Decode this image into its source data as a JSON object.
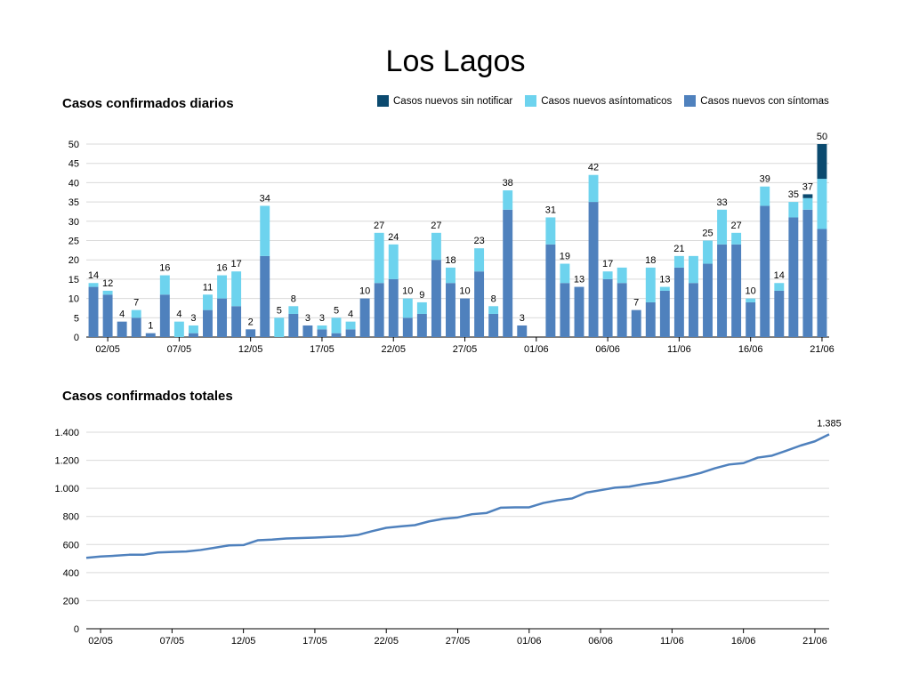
{
  "page": {
    "title": "Los Lagos"
  },
  "colors": {
    "sin_notificar": "#0b4a6f",
    "asintomaticos": "#6dd3ee",
    "sintomas": "#4f81bd",
    "grid": "#d9d9d9",
    "axis": "#000000"
  },
  "legend": [
    {
      "label": "Casos nuevos sin notificar",
      "color_key": "sin_notificar"
    },
    {
      "label": "Casos nuevos asíntomaticos",
      "color_key": "asintomaticos"
    },
    {
      "label": "Casos nuevos con síntomas",
      "color_key": "sintomas"
    }
  ],
  "chart_data": [
    {
      "type": "bar",
      "title": "Casos confirmados diarios",
      "stacked": true,
      "ylim": [
        0,
        50
      ],
      "yticks": [
        0,
        5,
        10,
        15,
        20,
        25,
        30,
        35,
        40,
        45,
        50
      ],
      "x_tick_labels": [
        "02/05",
        "07/05",
        "12/05",
        "17/05",
        "22/05",
        "27/05",
        "01/06",
        "06/06",
        "11/06",
        "16/06",
        "21/06"
      ],
      "x_tick_indices": [
        1,
        6,
        11,
        16,
        21,
        26,
        31,
        36,
        41,
        46,
        51
      ],
      "series": [
        {
          "name": "Casos nuevos con síntomas",
          "color_key": "sintomas",
          "values": [
            13,
            11,
            4,
            5,
            1,
            11,
            0,
            1,
            7,
            10,
            8,
            2,
            21,
            0,
            6,
            3,
            2,
            1,
            2,
            10,
            14,
            15,
            5,
            6,
            20,
            14,
            10,
            17,
            6,
            33,
            3,
            0,
            24,
            14,
            13,
            35,
            15,
            14,
            7,
            9,
            12,
            18,
            14,
            19,
            24,
            24,
            9,
            34,
            12,
            31,
            33,
            28
          ]
        },
        {
          "name": "Casos nuevos asíntomaticos",
          "color_key": "asintomaticos",
          "values": [
            1,
            1,
            0,
            2,
            0,
            5,
            4,
            2,
            4,
            6,
            9,
            0,
            13,
            5,
            2,
            0,
            1,
            4,
            2,
            0,
            13,
            9,
            5,
            3,
            7,
            4,
            0,
            6,
            2,
            5,
            0,
            0,
            7,
            5,
            0,
            7,
            2,
            4,
            0,
            9,
            1,
            3,
            7,
            6,
            9,
            3,
            1,
            5,
            2,
            4,
            3,
            13
          ]
        },
        {
          "name": "Casos nuevos sin notificar",
          "color_key": "sin_notificar",
          "values": [
            0,
            0,
            0,
            0,
            0,
            0,
            0,
            0,
            0,
            0,
            0,
            0,
            0,
            0,
            0,
            0,
            0,
            0,
            0,
            0,
            0,
            0,
            0,
            0,
            0,
            0,
            0,
            0,
            0,
            0,
            0,
            0,
            0,
            0,
            0,
            0,
            0,
            0,
            0,
            0,
            0,
            0,
            0,
            0,
            0,
            0,
            0,
            0,
            0,
            0,
            1,
            9
          ]
        }
      ],
      "totals": [
        14,
        12,
        4,
        7,
        1,
        16,
        4,
        3,
        11,
        16,
        17,
        2,
        34,
        5,
        8,
        3,
        3,
        5,
        4,
        10,
        27,
        24,
        10,
        9,
        27,
        18,
        10,
        23,
        8,
        38,
        3,
        null,
        31,
        19,
        13,
        42,
        17,
        18,
        7,
        18,
        13,
        21,
        21,
        25,
        33,
        27,
        10,
        39,
        14,
        35,
        37,
        50
      ],
      "total_labels": [
        "14",
        "12",
        "4",
        "7",
        "1",
        "16",
        "4",
        "3",
        "11",
        "16",
        "17",
        "2",
        "34",
        "5",
        "8",
        "3",
        "3",
        "5",
        "4",
        "10",
        "27",
        "24",
        "10",
        "9",
        "27",
        "18",
        "10",
        "23",
        "8",
        "38",
        "3",
        "",
        "31",
        "19",
        "13",
        "42",
        "17",
        "",
        "7",
        "18",
        "13",
        "21",
        "",
        "25",
        "33",
        "27",
        "10",
        "39",
        "14",
        "35",
        "37",
        "50"
      ]
    },
    {
      "type": "line",
      "title": "Casos confirmados totales",
      "ylim": [
        0,
        1400
      ],
      "yticks": [
        0,
        200,
        400,
        600,
        800,
        1000,
        1200,
        1400
      ],
      "ytick_labels": [
        "0",
        "200",
        "400",
        "600",
        "800",
        "1.000",
        "1.200",
        "1.400"
      ],
      "x_tick_labels": [
        "02/05",
        "07/05",
        "12/05",
        "17/05",
        "22/05",
        "27/05",
        "01/06",
        "06/06",
        "11/06",
        "16/06",
        "21/06"
      ],
      "x_tick_indices": [
        1,
        6,
        11,
        16,
        21,
        26,
        31,
        36,
        41,
        46,
        51
      ],
      "series": [
        {
          "name": "Casos confirmados totales",
          "color_key": "sintomas",
          "values": [
            505,
            515,
            520,
            527,
            527,
            543,
            547,
            550,
            561,
            577,
            594,
            596,
            630,
            635,
            643,
            646,
            649,
            654,
            658,
            668,
            695,
            719,
            729,
            738,
            765,
            783,
            793,
            816,
            824,
            862,
            865,
            865,
            896,
            915,
            928,
            970,
            987,
            1005,
            1012,
            1030,
            1043,
            1064,
            1085,
            1110,
            1143,
            1170,
            1180,
            1219,
            1233,
            1268,
            1305,
            1335,
            1385
          ]
        }
      ],
      "end_label": "1.385"
    }
  ]
}
